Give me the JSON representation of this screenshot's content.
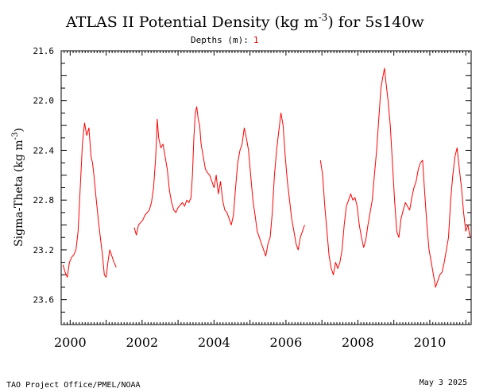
{
  "chart_data": {
    "type": "line",
    "title_main": "ATLAS II Potential Density (kg m",
    "title_exp": "-3",
    "title_tail": ") for 5s140w",
    "subtitle_label": "Depths (m):",
    "subtitle_value": "1",
    "ylabel_main": "Sigma-Theta (kg m",
    "ylabel_exp": "-3",
    "ylabel_tail": ")",
    "xlim": [
      1999.75,
      2011.15
    ],
    "ylim": [
      23.8,
      21.6
    ],
    "y_inverted": true,
    "yticks": [
      "21.6",
      "22.0",
      "22.4",
      "22.8",
      "23.2",
      "23.6"
    ],
    "yticks_values": [
      21.6,
      22.0,
      22.4,
      22.8,
      23.2,
      23.6
    ],
    "xticks": [
      "2000",
      "2002",
      "2004",
      "2006",
      "2008",
      "2010"
    ],
    "xticks_values": [
      2000,
      2002,
      2004,
      2006,
      2008,
      2010
    ],
    "grid": false,
    "series": [
      {
        "color": "#ff0000",
        "segments": [
          [
            [
              1999.8,
              23.32
            ],
            [
              1999.86,
              23.38
            ],
            [
              1999.92,
              23.42
            ],
            [
              1999.98,
              23.3
            ],
            [
              2000.04,
              23.26
            ],
            [
              2000.1,
              23.24
            ],
            [
              2000.16,
              23.2
            ],
            [
              2000.22,
              23.05
            ],
            [
              2000.28,
              22.7
            ],
            [
              2000.34,
              22.35
            ],
            [
              2000.4,
              22.18
            ],
            [
              2000.46,
              22.28
            ],
            [
              2000.52,
              22.22
            ],
            [
              2000.58,
              22.45
            ],
            [
              2000.62,
              22.5
            ],
            [
              2000.66,
              22.6
            ],
            [
              2000.72,
              22.78
            ],
            [
              2000.78,
              22.95
            ],
            [
              2000.84,
              23.1
            ],
            [
              2000.9,
              23.25
            ],
            [
              2000.95,
              23.4
            ],
            [
              2001.0,
              23.42
            ],
            [
              2001.05,
              23.3
            ],
            [
              2001.1,
              23.2
            ],
            [
              2001.16,
              23.25
            ],
            [
              2001.22,
              23.3
            ],
            [
              2001.28,
              23.34
            ]
          ],
          [
            [
              2001.78,
              23.02
            ],
            [
              2001.84,
              23.08
            ],
            [
              2001.9,
              23.0
            ],
            [
              2001.96,
              22.98
            ],
            [
              2002.02,
              22.96
            ],
            [
              2002.08,
              22.92
            ],
            [
              2002.14,
              22.9
            ],
            [
              2002.2,
              22.88
            ],
            [
              2002.26,
              22.82
            ],
            [
              2002.32,
              22.7
            ],
            [
              2002.38,
              22.45
            ],
            [
              2002.42,
              22.15
            ],
            [
              2002.46,
              22.3
            ],
            [
              2002.52,
              22.38
            ],
            [
              2002.58,
              22.35
            ],
            [
              2002.64,
              22.45
            ],
            [
              2002.7,
              22.55
            ],
            [
              2002.76,
              22.72
            ],
            [
              2002.82,
              22.82
            ],
            [
              2002.88,
              22.88
            ],
            [
              2002.94,
              22.9
            ],
            [
              2003.0,
              22.86
            ],
            [
              2003.06,
              22.84
            ],
            [
              2003.12,
              22.82
            ],
            [
              2003.18,
              22.85
            ],
            [
              2003.24,
              22.8
            ],
            [
              2003.3,
              22.82
            ],
            [
              2003.36,
              22.78
            ],
            [
              2003.4,
              22.6
            ],
            [
              2003.44,
              22.3
            ],
            [
              2003.48,
              22.1
            ],
            [
              2003.52,
              22.05
            ],
            [
              2003.56,
              22.15
            ],
            [
              2003.6,
              22.2
            ],
            [
              2003.64,
              22.35
            ],
            [
              2003.7,
              22.45
            ],
            [
              2003.76,
              22.55
            ],
            [
              2003.82,
              22.58
            ],
            [
              2003.88,
              22.6
            ],
            [
              2003.94,
              22.65
            ],
            [
              2004.0,
              22.7
            ],
            [
              2004.06,
              22.6
            ],
            [
              2004.12,
              22.75
            ],
            [
              2004.18,
              22.65
            ],
            [
              2004.24,
              22.8
            ],
            [
              2004.3,
              22.88
            ],
            [
              2004.36,
              22.9
            ],
            [
              2004.42,
              22.95
            ],
            [
              2004.48,
              23.0
            ],
            [
              2004.54,
              22.92
            ],
            [
              2004.6,
              22.7
            ],
            [
              2004.66,
              22.5
            ],
            [
              2004.72,
              22.4
            ],
            [
              2004.78,
              22.35
            ],
            [
              2004.84,
              22.22
            ],
            [
              2004.9,
              22.3
            ],
            [
              2004.96,
              22.4
            ],
            [
              2005.02,
              22.6
            ],
            [
              2005.08,
              22.8
            ],
            [
              2005.14,
              22.92
            ],
            [
              2005.2,
              23.05
            ],
            [
              2005.26,
              23.1
            ],
            [
              2005.32,
              23.15
            ],
            [
              2005.38,
              23.2
            ],
            [
              2005.44,
              23.25
            ],
            [
              2005.5,
              23.15
            ],
            [
              2005.56,
              23.1
            ],
            [
              2005.62,
              22.9
            ],
            [
              2005.68,
              22.6
            ],
            [
              2005.74,
              22.4
            ],
            [
              2005.8,
              22.25
            ],
            [
              2005.86,
              22.1
            ],
            [
              2005.92,
              22.2
            ],
            [
              2005.98,
              22.45
            ],
            [
              2006.04,
              22.65
            ],
            [
              2006.1,
              22.8
            ],
            [
              2006.16,
              22.95
            ],
            [
              2006.22,
              23.05
            ],
            [
              2006.28,
              23.15
            ],
            [
              2006.34,
              23.2
            ],
            [
              2006.4,
              23.1
            ],
            [
              2006.46,
              23.05
            ],
            [
              2006.52,
              23.0
            ]
          ],
          [
            [
              2006.96,
              22.48
            ],
            [
              2007.02,
              22.6
            ],
            [
              2007.08,
              22.85
            ],
            [
              2007.14,
              23.05
            ],
            [
              2007.2,
              23.25
            ],
            [
              2007.26,
              23.35
            ],
            [
              2007.32,
              23.4
            ],
            [
              2007.38,
              23.3
            ],
            [
              2007.44,
              23.35
            ],
            [
              2007.5,
              23.3
            ],
            [
              2007.56,
              23.2
            ],
            [
              2007.62,
              23.0
            ],
            [
              2007.68,
              22.85
            ],
            [
              2007.74,
              22.8
            ],
            [
              2007.8,
              22.75
            ],
            [
              2007.86,
              22.8
            ],
            [
              2007.92,
              22.78
            ],
            [
              2007.98,
              22.85
            ],
            [
              2008.04,
              23.0
            ],
            [
              2008.1,
              23.1
            ],
            [
              2008.16,
              23.18
            ],
            [
              2008.22,
              23.12
            ],
            [
              2008.28,
              23.0
            ],
            [
              2008.34,
              22.9
            ],
            [
              2008.4,
              22.8
            ],
            [
              2008.46,
              22.6
            ],
            [
              2008.52,
              22.4
            ],
            [
              2008.58,
              22.15
            ],
            [
              2008.64,
              21.9
            ],
            [
              2008.7,
              21.8
            ],
            [
              2008.74,
              21.74
            ],
            [
              2008.78,
              21.85
            ],
            [
              2008.84,
              22.0
            ],
            [
              2008.9,
              22.2
            ],
            [
              2008.96,
              22.5
            ],
            [
              2009.02,
              22.8
            ],
            [
              2009.08,
              23.05
            ],
            [
              2009.14,
              23.1
            ],
            [
              2009.2,
              22.95
            ],
            [
              2009.26,
              22.88
            ],
            [
              2009.32,
              22.82
            ],
            [
              2009.38,
              22.85
            ],
            [
              2009.44,
              22.88
            ],
            [
              2009.5,
              22.78
            ],
            [
              2009.56,
              22.7
            ],
            [
              2009.62,
              22.65
            ],
            [
              2009.68,
              22.55
            ],
            [
              2009.74,
              22.5
            ],
            [
              2009.8,
              22.48
            ],
            [
              2009.86,
              22.75
            ],
            [
              2009.92,
              23.0
            ],
            [
              2009.98,
              23.2
            ],
            [
              2010.04,
              23.3
            ],
            [
              2010.1,
              23.4
            ],
            [
              2010.16,
              23.5
            ],
            [
              2010.22,
              23.45
            ],
            [
              2010.28,
              23.4
            ],
            [
              2010.34,
              23.38
            ],
            [
              2010.4,
              23.3
            ],
            [
              2010.46,
              23.2
            ],
            [
              2010.52,
              23.1
            ],
            [
              2010.58,
              22.8
            ],
            [
              2010.64,
              22.6
            ],
            [
              2010.7,
              22.45
            ],
            [
              2010.76,
              22.38
            ],
            [
              2010.82,
              22.55
            ],
            [
              2010.88,
              22.7
            ],
            [
              2010.94,
              22.9
            ],
            [
              2011.0,
              23.05
            ],
            [
              2011.06,
              23.0
            ],
            [
              2011.12,
              23.1
            ]
          ]
        ]
      }
    ]
  },
  "footer": {
    "left": "TAO Project Office/PMEL/NOAA",
    "right": "May  3 2025"
  }
}
